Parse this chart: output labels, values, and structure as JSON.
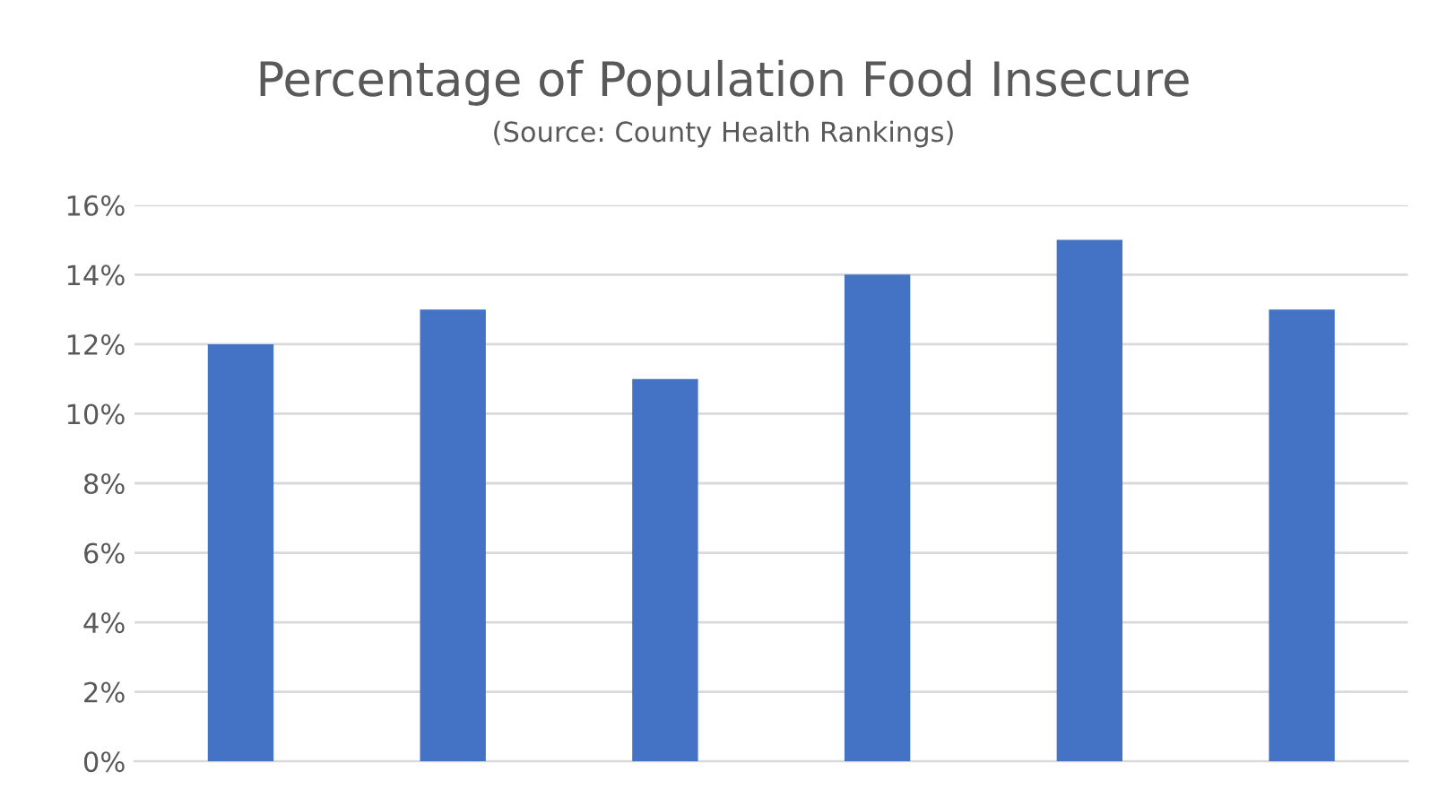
{
  "chart_data": {
    "type": "bar",
    "title": "Percentage of Population Food Insecure",
    "subtitle": "(Source: County Health Rankings)",
    "categories": [
      null,
      null,
      null,
      null,
      null,
      null
    ],
    "values": [
      12,
      13,
      11,
      14,
      15,
      13
    ],
    "color": "#4472c4",
    "ylim": [
      0,
      16
    ],
    "yticks": [
      {
        "value": 0,
        "label": "0%"
      },
      {
        "value": 2,
        "label": "2%"
      },
      {
        "value": 4,
        "label": "4%"
      },
      {
        "value": 6,
        "label": "6%"
      },
      {
        "value": 8,
        "label": "8%"
      },
      {
        "value": 10,
        "label": "10%"
      },
      {
        "value": 12,
        "label": "12%"
      },
      {
        "value": 14,
        "label": "14%"
      },
      {
        "value": 16,
        "label": "16%"
      }
    ],
    "grid": "y"
  }
}
